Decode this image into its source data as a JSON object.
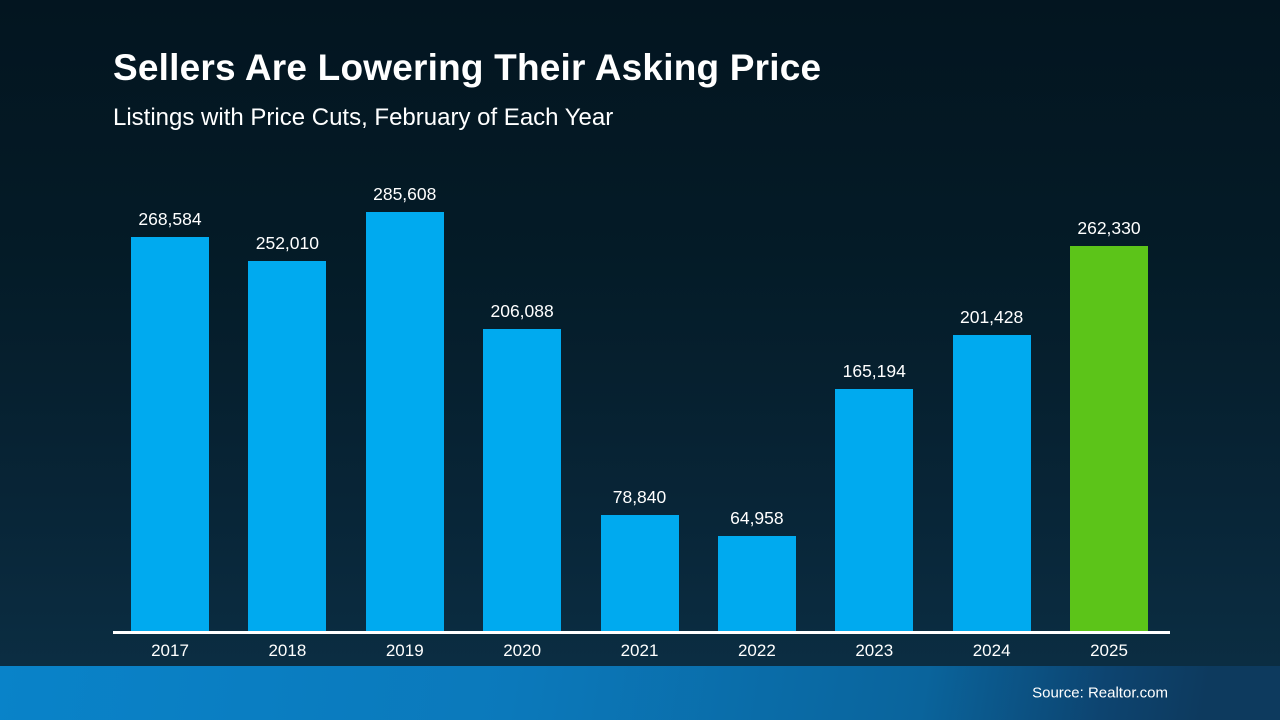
{
  "header": {
    "title": "Sellers Are Lowering Their Asking Price",
    "subtitle": "Listings with Price Cuts, February of Each Year"
  },
  "chart_data": {
    "type": "bar",
    "title": "Sellers Are Lowering Their Asking Price",
    "subtitle": "Listings with Price Cuts, February of Each Year",
    "xlabel": "",
    "ylabel": "",
    "categories": [
      "2017",
      "2018",
      "2019",
      "2020",
      "2021",
      "2022",
      "2023",
      "2024",
      "2025"
    ],
    "values": [
      268584,
      252010,
      285608,
      206088,
      78840,
      64958,
      165194,
      201428,
      262330
    ],
    "value_labels": [
      "268,584",
      "252,010",
      "285,608",
      "206,088",
      "78,840",
      "64,958",
      "165,194",
      "201,428",
      "262,330"
    ],
    "ylim": [
      0,
      300000
    ],
    "grid": false,
    "legend": false,
    "data_labels_position": "above-bar",
    "highlight_category": "2025",
    "bar_colors": {
      "default": "#00AAEF",
      "highlight": "#5CC419"
    }
  },
  "footer": {
    "source_label": "Source: Realtor.com"
  },
  "colors": {
    "background_top": "#031520",
    "background_bottom": "#0c3046",
    "axis_line": "#ffffff",
    "text": "#ffffff",
    "footer_gradient_left": "#0983c9",
    "footer_gradient_right": "#0d3a5e",
    "bar_blue": "#00AAEF",
    "bar_green": "#5CC419"
  }
}
